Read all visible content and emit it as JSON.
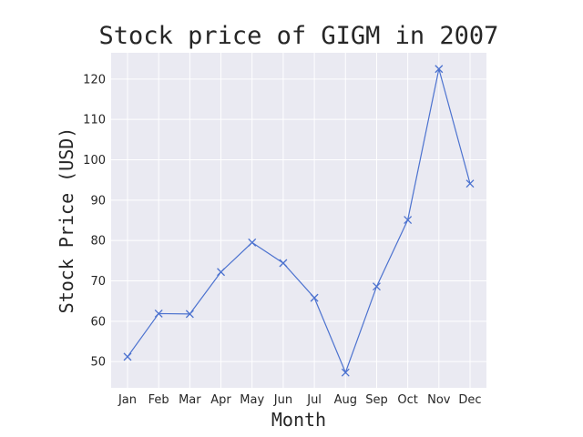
{
  "chart_data": {
    "type": "line",
    "title": "Stock price of GIGM in 2007",
    "xlabel": "Month",
    "ylabel": "Stock Price (USD)",
    "categories": [
      "Jan",
      "Feb",
      "Mar",
      "Apr",
      "May",
      "Jun",
      "Jul",
      "Aug",
      "Sep",
      "Oct",
      "Nov",
      "Dec"
    ],
    "series": [
      {
        "values": [
          51.2,
          61.9,
          61.8,
          72.2,
          79.5,
          74.4,
          65.8,
          47.3,
          68.6,
          85.1,
          122.5,
          94.1
        ],
        "color": "#4c72cf",
        "marker": "x"
      }
    ],
    "ylim": [
      43.5,
      126.5
    ],
    "yticks": [
      50,
      60,
      70,
      80,
      90,
      100,
      110,
      120
    ],
    "grid": true,
    "background": "#eaeaf2"
  }
}
